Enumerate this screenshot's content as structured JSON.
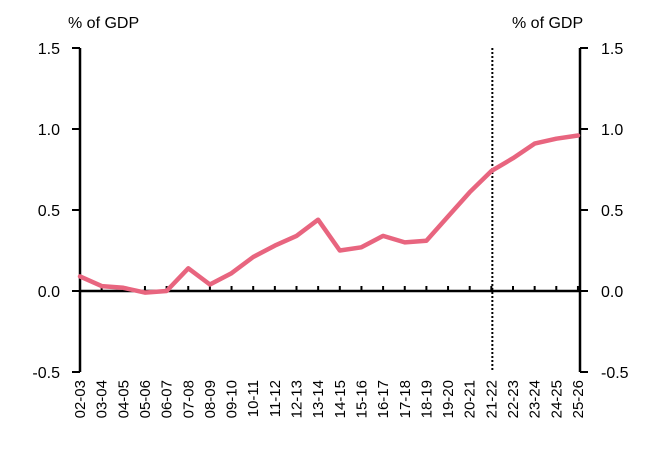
{
  "chart_data": {
    "type": "line",
    "categories": [
      "02-03",
      "03-04",
      "04-05",
      "05-06",
      "06-07",
      "07-08",
      "08-09",
      "09-10",
      "10-11",
      "11-12",
      "12-13",
      "13-14",
      "14-15",
      "15-16",
      "16-17",
      "17-18",
      "18-19",
      "19-20",
      "20-21",
      "21-22",
      "22-23",
      "23-24",
      "24-25",
      "25-26"
    ],
    "series": [
      {
        "values": [
          0.09,
          0.03,
          0.02,
          -0.01,
          0.0,
          0.14,
          0.04,
          0.11,
          0.21,
          0.28,
          0.34,
          0.44,
          0.25,
          0.27,
          0.34,
          0.3,
          0.31,
          0.46,
          0.61,
          0.74,
          0.82,
          0.91,
          0.94,
          0.96
        ],
        "color": "#e8657f"
      }
    ],
    "left_axis_label": "% of GDP",
    "right_axis_label": "% of GDP",
    "ylim": [
      -0.5,
      1.5
    ],
    "yticks": [
      "1.5",
      "1.0",
      "0.5",
      "0.0",
      "-0.5"
    ],
    "ytick_values": [
      1.5,
      1.0,
      0.5,
      0.0,
      -0.5
    ],
    "reference_line": {
      "category": "21-22",
      "style": "dotted"
    },
    "grid": false,
    "legend": "none"
  }
}
